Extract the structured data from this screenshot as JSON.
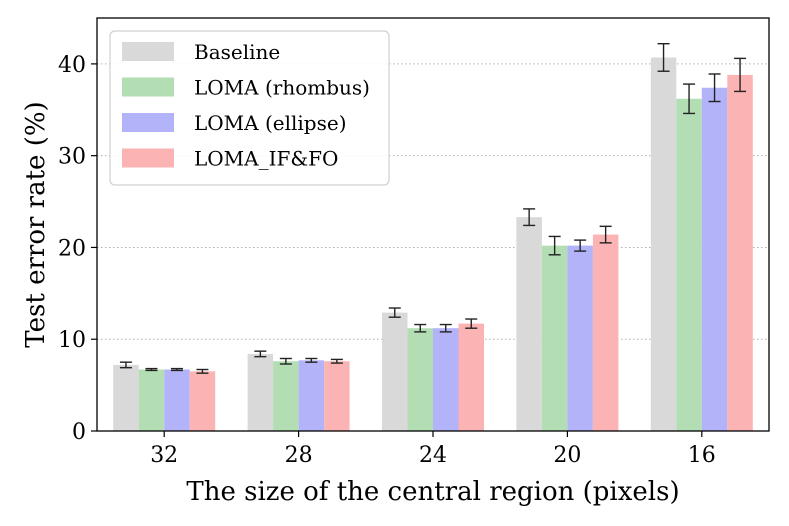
{
  "chart_data": {
    "type": "bar",
    "title": "",
    "xlabel": "The size of the central region (pixels)",
    "ylabel": "Test error rate (%)",
    "ylim": [
      0,
      45
    ],
    "yticks": [
      0,
      10,
      20,
      30,
      40
    ],
    "grid": "horizontal dotted",
    "legend_position": "top-left",
    "categories": [
      "32",
      "28",
      "24",
      "20",
      "16"
    ],
    "series": [
      {
        "name": "Baseline",
        "color": "#d9d9d9",
        "values": [
          7.2,
          8.4,
          12.9,
          23.3,
          40.7
        ],
        "errors": [
          0.3,
          0.3,
          0.5,
          0.9,
          1.5
        ]
      },
      {
        "name": "LOMA (rhombus)",
        "color": "#b3deb3",
        "values": [
          6.7,
          7.6,
          11.2,
          20.2,
          36.2
        ],
        "errors": [
          0.1,
          0.3,
          0.4,
          1.0,
          1.6
        ]
      },
      {
        "name": "LOMA (ellipse)",
        "color": "#b3b3fa",
        "values": [
          6.7,
          7.7,
          11.2,
          20.2,
          37.4
        ],
        "errors": [
          0.1,
          0.2,
          0.4,
          0.6,
          1.5
        ]
      },
      {
        "name": "LOMA_IF&FO",
        "color": "#fbb3b3",
        "values": [
          6.5,
          7.6,
          11.7,
          21.4,
          38.8
        ],
        "errors": [
          0.2,
          0.2,
          0.5,
          0.9,
          1.8
        ]
      }
    ]
  }
}
